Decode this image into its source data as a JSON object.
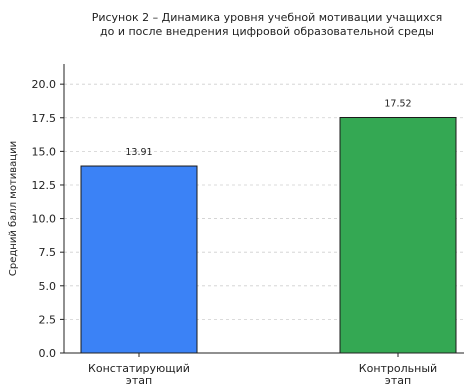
{
  "chart_data": {
    "type": "bar",
    "title_lines": [
      "Рисунок 2 – Динамика уровня учебной мотивации учащихся",
      "до и после внедрения цифровой образовательной среды"
    ],
    "xlabel": "",
    "ylabel": "Средний балл мотивации",
    "categories": [
      [
        "Констатирующий",
        "этап"
      ],
      [
        "Контрольный",
        "этап"
      ]
    ],
    "values": [
      13.91,
      17.52
    ],
    "value_labels": [
      "13.91",
      "17.52"
    ],
    "colors": [
      "#3b82f6",
      "#34a853"
    ],
    "bar_edge_color": "#1a1a1a",
    "ylim": [
      0,
      21.5
    ],
    "yticks": [
      0.0,
      2.5,
      5.0,
      7.5,
      10.0,
      12.5,
      15.0,
      17.5,
      20.0
    ],
    "ytick_labels": [
      "0.0",
      "2.5",
      "5.0",
      "7.5",
      "10.0",
      "12.5",
      "15.0",
      "17.5",
      "20.0"
    ],
    "grid": "y-dashed",
    "legend": "none"
  }
}
